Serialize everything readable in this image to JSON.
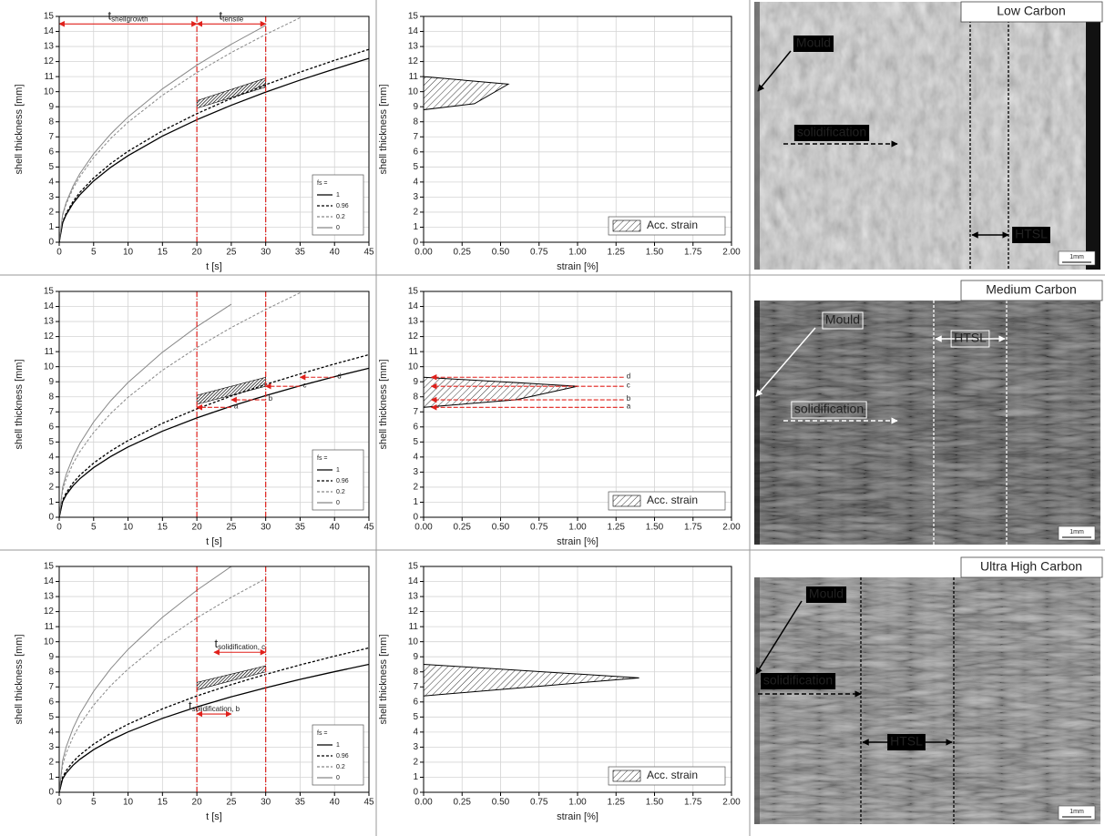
{
  "chart_data": [
    {
      "type": "line",
      "xlabel": "t [s]",
      "ylabel": "shell thickness [mm]",
      "xlim": [
        0,
        45
      ],
      "ylim": [
        0,
        15
      ],
      "xticks": [
        0,
        5,
        10,
        15,
        20,
        25,
        30,
        35,
        40,
        45
      ],
      "yticks": [
        0,
        1,
        2,
        3,
        4,
        5,
        6,
        7,
        8,
        9,
        10,
        11,
        12,
        13,
        14,
        15
      ],
      "grid": true,
      "legend": "lower right",
      "legend_title": "fs =",
      "x": [
        0,
        0.5,
        1,
        2,
        3,
        5,
        7.5,
        10,
        15,
        20,
        25,
        30,
        35,
        40,
        45
      ],
      "series": [
        {
          "name": "1",
          "color": "#000000",
          "dash": "solid",
          "values": [
            0,
            1.29,
            1.82,
            2.57,
            3.15,
            4.07,
            4.98,
            5.75,
            7.05,
            8.14,
            9.1,
            9.97,
            10.77,
            11.51,
            12.21
          ]
        },
        {
          "name": "0.96",
          "color": "#000000",
          "dash": "dashed",
          "values": [
            0,
            1.35,
            1.91,
            2.7,
            3.31,
            4.27,
            5.23,
            6.04,
            7.4,
            8.54,
            9.55,
            10.46,
            11.3,
            12.08,
            12.81
          ]
        },
        {
          "name": "0.2",
          "color": "#888888",
          "dash": "dashed",
          "values": [
            0,
            1.78,
            2.52,
            3.56,
            4.36,
            5.63,
            6.9,
            7.97,
            9.76,
            11.27,
            12.6,
            13.8,
            14.91,
            null,
            null
          ]
        },
        {
          "name": "0",
          "color": "#888888",
          "dash": "solid",
          "values": [
            0,
            1.86,
            2.63,
            3.72,
            4.56,
            5.88,
            7.2,
            8.32,
            10.19,
            11.76,
            13.15,
            14.4,
            null,
            null,
            null
          ]
        }
      ],
      "markers": [
        20,
        30
      ],
      "shaded": {
        "x": [
          20,
          30
        ],
        "low": [
          8.9,
          10.3
        ],
        "high": [
          9.4,
          10.9
        ]
      },
      "annotations": [
        {
          "text": "t",
          "sub": "shellgrowth",
          "x": [
            0,
            20
          ],
          "y": 14.5
        },
        {
          "text": "t",
          "sub": "tensile",
          "x": [
            20,
            30
          ],
          "y": 14.5
        }
      ]
    },
    {
      "type": "area",
      "xlabel": "strain [%]",
      "ylabel": "shell thickness [mm]",
      "xlim": [
        0,
        2
      ],
      "ylim": [
        0,
        15
      ],
      "xticks": [
        {
          "value": 0,
          "label": "0.00"
        },
        {
          "value": 0.25,
          "label": "0.25"
        },
        {
          "value": 0.5,
          "label": "0.50"
        },
        {
          "value": 0.75,
          "label": "0.75"
        },
        {
          "value": 1,
          "label": "1.00"
        },
        {
          "value": 1.25,
          "label": "1.25"
        },
        {
          "value": 1.5,
          "label": "1.50"
        },
        {
          "value": 1.75,
          "label": "1.75"
        },
        {
          "value": 2,
          "label": "2.00"
        }
      ],
      "yticks": [
        0,
        1,
        2,
        3,
        4,
        5,
        6,
        7,
        8,
        9,
        10,
        11,
        12,
        13,
        14,
        15
      ],
      "grid": true,
      "legend": "lower right",
      "series": [
        {
          "name": "Acc. strain",
          "x": [
            0,
            0.55,
            0.33,
            0
          ],
          "values": [
            11.0,
            10.5,
            9.2,
            8.8
          ]
        }
      ]
    },
    {
      "type": "line",
      "xlabel": "t [s]",
      "ylabel": "shell thickness [mm]",
      "xlim": [
        0,
        45
      ],
      "ylim": [
        0,
        15
      ],
      "xticks": [
        0,
        5,
        10,
        15,
        20,
        25,
        30,
        35,
        40,
        45
      ],
      "yticks": [
        0,
        1,
        2,
        3,
        4,
        5,
        6,
        7,
        8,
        9,
        10,
        11,
        12,
        13,
        14,
        15
      ],
      "grid": true,
      "legend": "lower right",
      "legend_title": "fs =",
      "x": [
        0,
        0.5,
        1,
        2,
        3,
        5,
        7.5,
        10,
        15,
        20,
        25,
        30,
        35,
        40,
        45
      ],
      "series": [
        {
          "name": "1",
          "color": "#000000",
          "dash": "solid",
          "values": [
            0,
            1.04,
            1.48,
            2.09,
            2.56,
            3.3,
            4.04,
            4.67,
            5.72,
            6.6,
            7.38,
            8.08,
            8.73,
            9.34,
            9.9
          ]
        },
        {
          "name": "0.96",
          "color": "#000000",
          "dash": "dashed",
          "values": [
            0,
            1.14,
            1.61,
            2.28,
            2.79,
            3.6,
            4.41,
            5.09,
            6.24,
            7.2,
            8.05,
            8.82,
            9.52,
            10.18,
            10.8
          ]
        },
        {
          "name": "0.2",
          "color": "#888888",
          "dash": "dashed",
          "values": [
            0,
            1.78,
            2.52,
            3.56,
            4.36,
            5.63,
            6.9,
            7.97,
            9.76,
            11.27,
            12.6,
            13.8,
            14.91,
            null,
            null
          ]
        },
        {
          "name": "0",
          "color": "#888888",
          "dash": "solid",
          "values": [
            0,
            2,
            2.83,
            4,
            4.9,
            6.33,
            7.75,
            8.95,
            10.96,
            12.66,
            14.15,
            null,
            null,
            null,
            null
          ]
        }
      ],
      "markers": [
        20,
        30
      ],
      "shaded": {
        "x": [
          20,
          30
        ],
        "low": [
          7.5,
          8.7
        ],
        "high": [
          8.1,
          9.3
        ]
      },
      "annotations": [
        {
          "text": "a",
          "x": [
            25,
            20
          ],
          "y": 7.3
        },
        {
          "text": "b",
          "x": [
            30,
            25
          ],
          "y": 7.8
        },
        {
          "text": "c",
          "x": [
            35,
            30
          ],
          "y": 8.7
        },
        {
          "text": "d",
          "x": [
            40,
            35
          ],
          "y": 9.3
        }
      ]
    },
    {
      "type": "area",
      "xlabel": "strain [%]",
      "ylabel": "shell thickness [mm]",
      "xlim": [
        0,
        2
      ],
      "ylim": [
        0,
        15
      ],
      "xticks": [
        {
          "value": 0,
          "label": "0.00"
        },
        {
          "value": 0.25,
          "label": "0.25"
        },
        {
          "value": 0.5,
          "label": "0.50"
        },
        {
          "value": 0.75,
          "label": "0.75"
        },
        {
          "value": 1,
          "label": "1.00"
        },
        {
          "value": 1.25,
          "label": "1.25"
        },
        {
          "value": 1.5,
          "label": "1.50"
        },
        {
          "value": 1.75,
          "label": "1.75"
        },
        {
          "value": 2,
          "label": "2.00"
        }
      ],
      "yticks": [
        0,
        1,
        2,
        3,
        4,
        5,
        6,
        7,
        8,
        9,
        10,
        11,
        12,
        13,
        14,
        15
      ],
      "grid": true,
      "legend": "lower right",
      "series": [
        {
          "name": "Acc. strain",
          "x": [
            0,
            1.0,
            0.6,
            0
          ],
          "values": [
            9.3,
            8.7,
            7.8,
            7.3
          ]
        }
      ],
      "annotations": [
        {
          "text": "a",
          "x": [
            1.3,
            0.05
          ],
          "y": 7.3
        },
        {
          "text": "b",
          "x": [
            1.3,
            0.05
          ],
          "y": 7.8
        },
        {
          "text": "c",
          "x": [
            1.3,
            0.05
          ],
          "y": 8.7
        },
        {
          "text": "d",
          "x": [
            1.3,
            0.05
          ],
          "y": 9.3
        }
      ]
    },
    {
      "type": "line",
      "xlabel": "t [s]",
      "ylabel": "shell thickness [mm]",
      "xlim": [
        0,
        45
      ],
      "ylim": [
        0,
        15
      ],
      "xticks": [
        0,
        5,
        10,
        15,
        20,
        25,
        30,
        35,
        40,
        45
      ],
      "yticks": [
        0,
        1,
        2,
        3,
        4,
        5,
        6,
        7,
        8,
        9,
        10,
        11,
        12,
        13,
        14,
        15
      ],
      "grid": true,
      "legend": "lower right",
      "legend_title": "fs =",
      "x": [
        0,
        0.5,
        1,
        2,
        3,
        5,
        7.5,
        10,
        15,
        20,
        25,
        30,
        35,
        40,
        45
      ],
      "series": [
        {
          "name": "1",
          "color": "#000000",
          "dash": "solid",
          "values": [
            0,
            0.9,
            1.27,
            1.79,
            2.19,
            2.83,
            3.47,
            4.01,
            4.91,
            5.67,
            6.34,
            6.94,
            7.5,
            8.01,
            8.5
          ]
        },
        {
          "name": "0.96",
          "color": "#000000",
          "dash": "dashed",
          "values": [
            0,
            1.01,
            1.43,
            2.02,
            2.48,
            3.2,
            3.92,
            4.52,
            5.54,
            6.4,
            7.15,
            7.83,
            8.46,
            9.04,
            9.59
          ]
        },
        {
          "name": "0.2",
          "color": "#888888",
          "dash": "dashed",
          "values": [
            0,
            1.83,
            2.59,
            3.66,
            4.49,
            5.79,
            7.09,
            8.19,
            10.03,
            11.58,
            12.95,
            14.19,
            null,
            null,
            null
          ]
        },
        {
          "name": "0",
          "color": "#888888",
          "dash": "solid",
          "values": [
            0,
            2.12,
            3,
            4.24,
            5.2,
            6.71,
            8.22,
            9.49,
            11.62,
            13.42,
            15,
            null,
            null,
            null,
            null
          ]
        }
      ],
      "markers": [
        20,
        30
      ],
      "shaded": {
        "x": [
          20,
          30
        ],
        "low": [
          6.8,
          8.0
        ],
        "high": [
          7.3,
          8.4
        ]
      },
      "annotations": [
        {
          "text": "t",
          "sub": "solidification, c",
          "x": [
            22.5,
            30
          ],
          "y": 9.3
        },
        {
          "text": "t",
          "sub": "solidification, b",
          "x": [
            20,
            25
          ],
          "y": 5.2
        }
      ]
    },
    {
      "type": "area",
      "xlabel": "strain [%]",
      "ylabel": "shell thickness [mm]",
      "xlim": [
        0,
        2
      ],
      "ylim": [
        0,
        15
      ],
      "xticks": [
        {
          "value": 0,
          "label": "0.00"
        },
        {
          "value": 0.25,
          "label": "0.25"
        },
        {
          "value": 0.5,
          "label": "0.50"
        },
        {
          "value": 0.75,
          "label": "0.75"
        },
        {
          "value": 1,
          "label": "1.00"
        },
        {
          "value": 1.25,
          "label": "1.25"
        },
        {
          "value": 1.5,
          "label": "1.50"
        },
        {
          "value": 1.75,
          "label": "1.75"
        },
        {
          "value": 2,
          "label": "2.00"
        }
      ],
      "yticks": [
        0,
        1,
        2,
        3,
        4,
        5,
        6,
        7,
        8,
        9,
        10,
        11,
        12,
        13,
        14,
        15
      ],
      "grid": true,
      "legend": "lower right",
      "series": [
        {
          "name": "Acc. strain",
          "x": [
            0,
            1.4,
            0
          ],
          "values": [
            8.5,
            7.6,
            6.4
          ]
        }
      ]
    }
  ],
  "micrographs": [
    {
      "title": "Low Carbon",
      "labels": [
        "Mould",
        "solidification",
        "HTSL"
      ],
      "scale": "1mm"
    },
    {
      "title": "Medium Carbon",
      "labels": [
        "Mould",
        "solidification",
        "HTSL"
      ],
      "scale": "1mm"
    },
    {
      "title": "Ultra High Carbon",
      "labels": [
        "Mould",
        "solidification",
        "HTSL"
      ],
      "scale": "1mm"
    }
  ]
}
